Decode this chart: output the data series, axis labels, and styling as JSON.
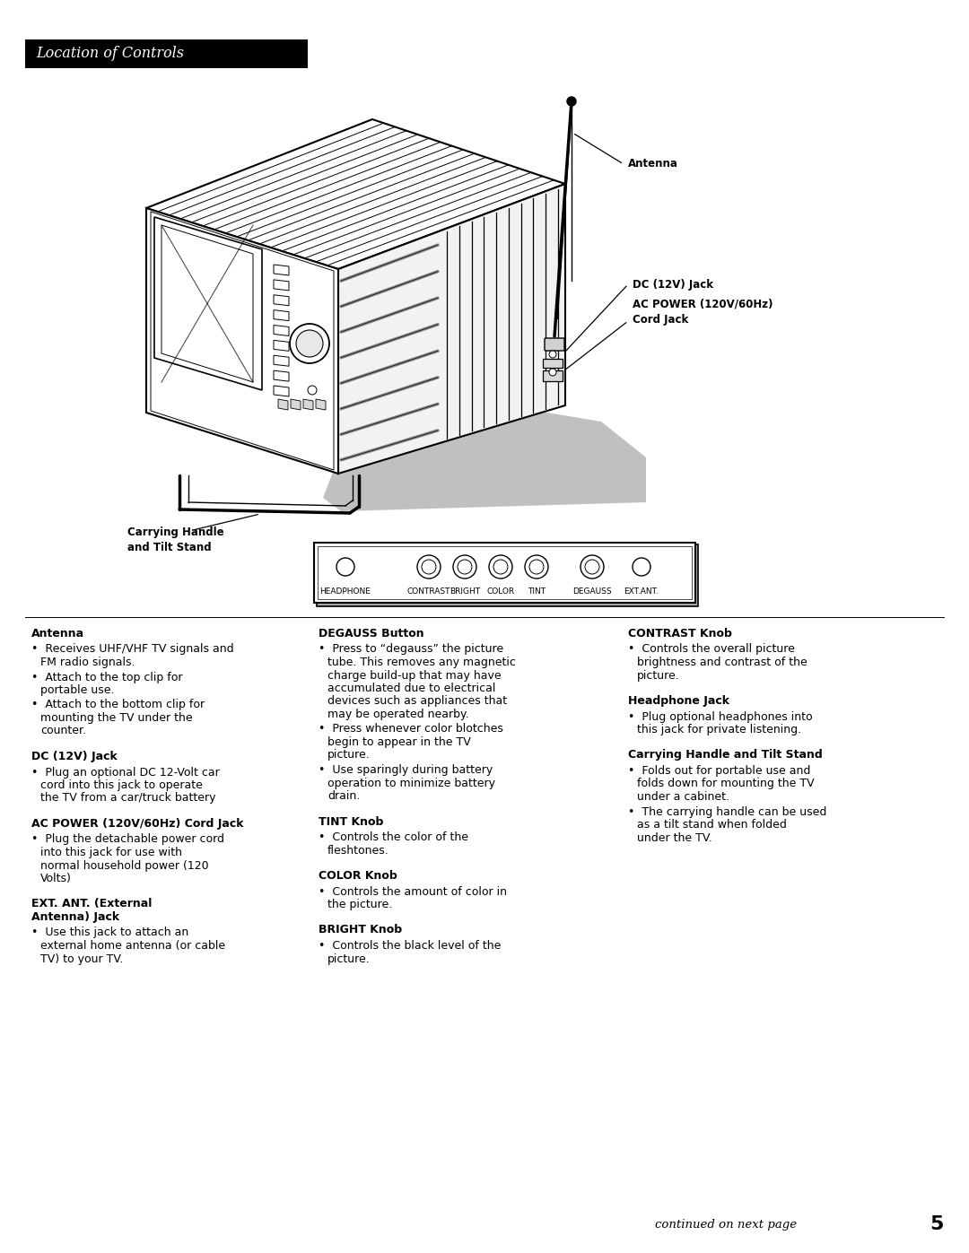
{
  "title_text": "Location of Controls",
  "title_bg": "#000000",
  "title_fg": "#ffffff",
  "page_bg": "#ffffff",
  "page_number": "5",
  "footer_text": "continued on next page",
  "col1_sections": [
    {
      "heading": "Antenna",
      "items": [
        "Receives UHF/VHF TV signals and FM radio signals.",
        "Attach to the top clip for portable use.",
        "Attach to the bottom clip for mounting the TV under the counter."
      ]
    },
    {
      "heading": "DC (12V) Jack",
      "items": [
        "Plug an optional DC 12-Volt car cord into this jack to operate the TV from a car/truck battery"
      ]
    },
    {
      "heading": "AC POWER (120V/60Hz) Cord Jack",
      "items": [
        "Plug the detachable power cord into this jack for use with normal household power (120 Volts)"
      ]
    },
    {
      "heading": "EXT. ANT. (External\nAntenna) Jack",
      "items": [
        "Use this jack to attach an external home antenna (or cable TV) to your TV."
      ]
    }
  ],
  "col2_sections": [
    {
      "heading": "DEGAUSS Button",
      "items": [
        "Press to “degauss” the picture tube. This removes any magnetic charge build-up that may have accumulated due to electrical devices such as appliances that may be operated nearby.",
        "Press whenever color blotches begin to appear in the TV picture.",
        "Use sparingly during battery operation to minimize battery drain."
      ]
    },
    {
      "heading": "TINT Knob",
      "items": [
        "Controls the color of the fleshtones."
      ]
    },
    {
      "heading": "COLOR Knob",
      "items": [
        "Controls the amount of color in the picture."
      ]
    },
    {
      "heading": "BRIGHT Knob",
      "items": [
        "Controls the black level of the picture."
      ]
    }
  ],
  "col3_sections": [
    {
      "heading": "CONTRAST Knob",
      "items": [
        "Controls the overall picture brightness and contrast of the picture."
      ]
    },
    {
      "heading": "Headphone Jack",
      "items": [
        "Plug optional headphones into this jack for private listening."
      ]
    },
    {
      "heading": "Carrying Handle and Tilt Stand",
      "items": [
        "Folds out for portable use and folds down for mounting the TV under a cabinet.",
        "The carrying handle can be used as a tilt stand when folded under the TV."
      ]
    }
  ],
  "ant_label": "Antenna",
  "dc_label": "DC (12V) Jack",
  "ac_label": "AC POWER (120V/60Hz)\nCord Jack",
  "handle_label": "Carrying Handle\nand Tilt Stand",
  "front_panel_labels": [
    "HEADPHONE",
    "CONTRAST",
    "BRIGHT",
    "COLOR",
    "TINT",
    "DEGAUSS",
    "EXT.ANT."
  ]
}
